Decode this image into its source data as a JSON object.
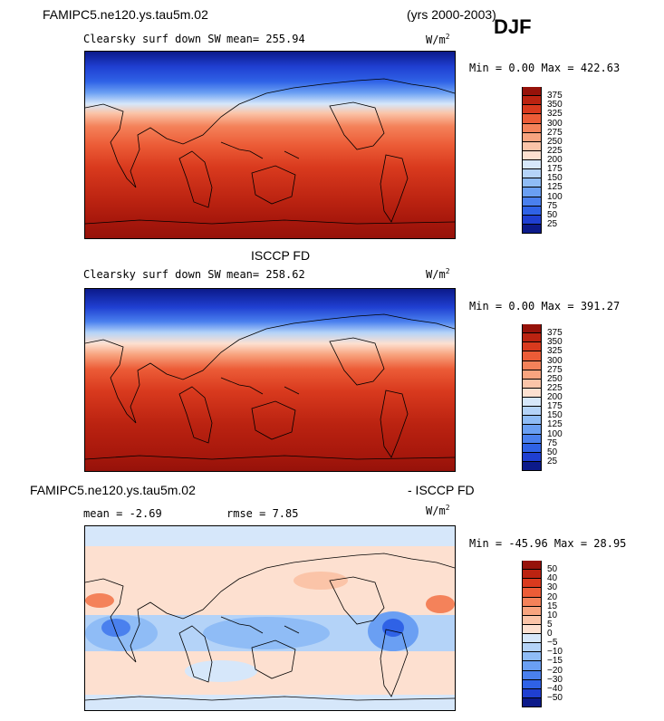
{
  "header": {
    "case_name": "FAMIPC5.ne120.ys.tau5m.02",
    "years": "(yrs 2000-2003)",
    "season": "DJF"
  },
  "colorbar_colors": [
    "#0c1a8a",
    "#1f3fd1",
    "#2f62e6",
    "#4a80ee",
    "#6a9ff3",
    "#8fbcf6",
    "#b4d3f8",
    "#d6e7fa",
    "#ffffff",
    "#fde0d0",
    "#fbc4a8",
    "#f8a47f",
    "#f4825a",
    "#ec5c37",
    "#d93a1e",
    "#bb2311",
    "#96120a"
  ],
  "panels": [
    {
      "id": "model",
      "title": "",
      "field_label": "Clearsky surf down SW",
      "mean_text": "mean= 255.94",
      "rmse_text": "",
      "units_text": "W/m",
      "units_exp": "2",
      "stats_text": "Min =   0.00 Max = 422.63",
      "colorbar_ticks": [
        "375",
        "350",
        "325",
        "300",
        "275",
        "250",
        "225",
        "200",
        "175",
        "150",
        "125",
        "100",
        "75",
        "50",
        "25"
      ]
    },
    {
      "id": "obs",
      "title": "ISCCP FD",
      "field_label": "Clearsky surf down SW",
      "mean_text": "mean= 258.62",
      "rmse_text": "",
      "units_text": "W/m",
      "units_exp": "2",
      "stats_text": "Min =   0.00 Max = 391.27",
      "colorbar_ticks": [
        "375",
        "350",
        "325",
        "300",
        "275",
        "250",
        "225",
        "200",
        "175",
        "150",
        "125",
        "100",
        "75",
        "50",
        "25"
      ]
    },
    {
      "id": "diff",
      "title_left": "FAMIPC5.ne120.ys.tau5m.02",
      "title_right": "- ISCCP FD",
      "field_label": "",
      "mean_text": "mean =   -2.69",
      "rmse_text": "rmse =    7.85",
      "units_text": "W/m",
      "units_exp": "2",
      "stats_text": "Min = -45.96 Max =  28.95",
      "colorbar_ticks": [
        "50",
        "40",
        "30",
        "20",
        "15",
        "10",
        "5",
        "0",
        "−5",
        "−10",
        "−15",
        "−20",
        "−30",
        "−40",
        "−50"
      ]
    }
  ],
  "chart_data": [
    {
      "type": "heatmap",
      "title": "FAMIPC5.ne120.ys.tau5m.02 Clearsky surf down SW (DJF, yrs 2000-2003)",
      "units": "W/m2",
      "mean": 255.94,
      "min": 0.0,
      "max": 422.63,
      "color_levels": [
        25,
        50,
        75,
        100,
        125,
        150,
        175,
        200,
        225,
        250,
        275,
        300,
        325,
        350,
        375
      ]
    },
    {
      "type": "heatmap",
      "title": "ISCCP FD Clearsky surf down SW",
      "units": "W/m2",
      "mean": 258.62,
      "min": 0.0,
      "max": 391.27,
      "color_levels": [
        25,
        50,
        75,
        100,
        125,
        150,
        175,
        200,
        225,
        250,
        275,
        300,
        325,
        350,
        375
      ]
    },
    {
      "type": "heatmap",
      "title": "FAMIPC5.ne120.ys.tau5m.02 - ISCCP FD",
      "units": "W/m2",
      "mean": -2.69,
      "rmse": 7.85,
      "min": -45.96,
      "max": 28.95,
      "color_levels": [
        -50,
        -40,
        -30,
        -20,
        -15,
        -10,
        -5,
        0,
        5,
        10,
        15,
        20,
        30,
        40,
        50
      ]
    }
  ]
}
